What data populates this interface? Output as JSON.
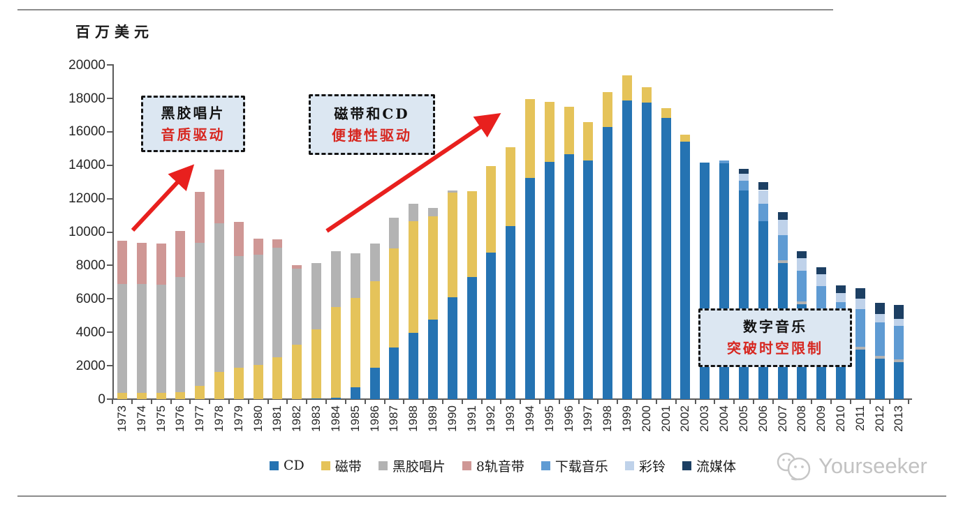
{
  "page": {
    "unit_label": "百万美元",
    "watermark_text": "Yourseeker"
  },
  "annotations": [
    {
      "line1": "黑胶唱片",
      "line2": "音质驱动"
    },
    {
      "line1": "磁带和CD",
      "line2": "便捷性驱动"
    },
    {
      "line1": "数字音乐",
      "line2": "突破时空限制"
    }
  ],
  "chart_data": {
    "type": "bar",
    "stacked": true,
    "title": "",
    "unit_label": "百万美元",
    "ylim": [
      0,
      20000
    ],
    "ytick_step": 2000,
    "grid": false,
    "legend_position": "bottom",
    "accent_red": "#e8201e",
    "categories": [
      "1973",
      "1974",
      "1975",
      "1976",
      "1977",
      "1978",
      "1979",
      "1980",
      "1981",
      "1982",
      "1983",
      "1984",
      "1985",
      "1986",
      "1987",
      "1988",
      "1989",
      "1990",
      "1991",
      "1992",
      "1993",
      "1994",
      "1995",
      "1996",
      "1997",
      "1998",
      "1999",
      "2000",
      "2001",
      "2002",
      "2003",
      "2004",
      "2005",
      "2006",
      "2007",
      "2008",
      "2009",
      "2010",
      "2011",
      "2012",
      "2013"
    ],
    "series": [
      {
        "name": "CD",
        "color": "#2573b2",
        "values": [
          0,
          0,
          0,
          0,
          0,
          0,
          0,
          0,
          0,
          0,
          50,
          100,
          710,
          1870,
          3080,
          3960,
          4750,
          6110,
          7330,
          8790,
          10350,
          13240,
          14220,
          14660,
          14290,
          16270,
          17870,
          17740,
          16820,
          15430,
          14180,
          14100,
          12500,
          10670,
          8160,
          5680,
          4960,
          3700,
          2980,
          2420,
          2200
        ]
      },
      {
        "name": "磁带",
        "color": "#e5c35a",
        "values": [
          380,
          390,
          365,
          430,
          780,
          1615,
          1895,
          2035,
          2520,
          3250,
          4140,
          5420,
          5360,
          5180,
          5950,
          6710,
          6200,
          6270,
          5110,
          5180,
          4740,
          4730,
          3580,
          2860,
          2300,
          2090,
          1510,
          930,
          600,
          420,
          0,
          0,
          0,
          0,
          0,
          0,
          0,
          0,
          0,
          0,
          0
        ]
      },
      {
        "name": "黑胶唱片",
        "color": "#b3b3b3",
        "values": [
          6530,
          6520,
          6475,
          6895,
          8565,
          8910,
          6685,
          6615,
          6545,
          4550,
          3970,
          3340,
          2650,
          2270,
          1850,
          1010,
          490,
          100,
          0,
          0,
          0,
          0,
          0,
          0,
          0,
          0,
          0,
          0,
          0,
          0,
          0,
          0,
          0,
          0,
          140,
          180,
          0,
          0,
          170,
          170,
          180
        ]
      },
      {
        "name": "8轨音带",
        "color": "#cf9795",
        "values": [
          2580,
          2440,
          2465,
          2755,
          3065,
          3205,
          2020,
          975,
          490,
          200,
          0,
          0,
          0,
          0,
          0,
          0,
          0,
          0,
          0,
          0,
          0,
          0,
          0,
          0,
          0,
          0,
          0,
          0,
          0,
          0,
          0,
          0,
          0,
          0,
          0,
          0,
          0,
          0,
          0,
          0,
          0
        ]
      },
      {
        "name": "下载音乐",
        "color": "#5f9bd3",
        "values": [
          0,
          0,
          0,
          0,
          0,
          0,
          0,
          0,
          0,
          0,
          0,
          0,
          0,
          0,
          0,
          0,
          0,
          0,
          0,
          0,
          0,
          0,
          0,
          0,
          0,
          0,
          0,
          0,
          0,
          0,
          0,
          190,
          560,
          1045,
          1530,
          1810,
          1810,
          2100,
          2230,
          2020,
          2020
        ]
      },
      {
        "name": "彩铃",
        "color": "#bfd2ea",
        "values": [
          0,
          0,
          0,
          0,
          0,
          0,
          0,
          0,
          0,
          0,
          0,
          0,
          0,
          0,
          0,
          0,
          0,
          0,
          0,
          0,
          0,
          0,
          0,
          0,
          0,
          0,
          0,
          0,
          0,
          0,
          0,
          0,
          420,
          795,
          905,
          765,
          695,
          560,
          625,
          490,
          420
        ]
      },
      {
        "name": "流媒体",
        "color": "#1c3f63",
        "values": [
          0,
          0,
          0,
          0,
          0,
          0,
          0,
          0,
          0,
          0,
          0,
          0,
          0,
          0,
          0,
          0,
          0,
          0,
          0,
          0,
          0,
          0,
          0,
          0,
          0,
          0,
          0,
          0,
          0,
          0,
          0,
          0,
          320,
          460,
          450,
          420,
          420,
          445,
          630,
          670,
          810
        ]
      }
    ]
  }
}
